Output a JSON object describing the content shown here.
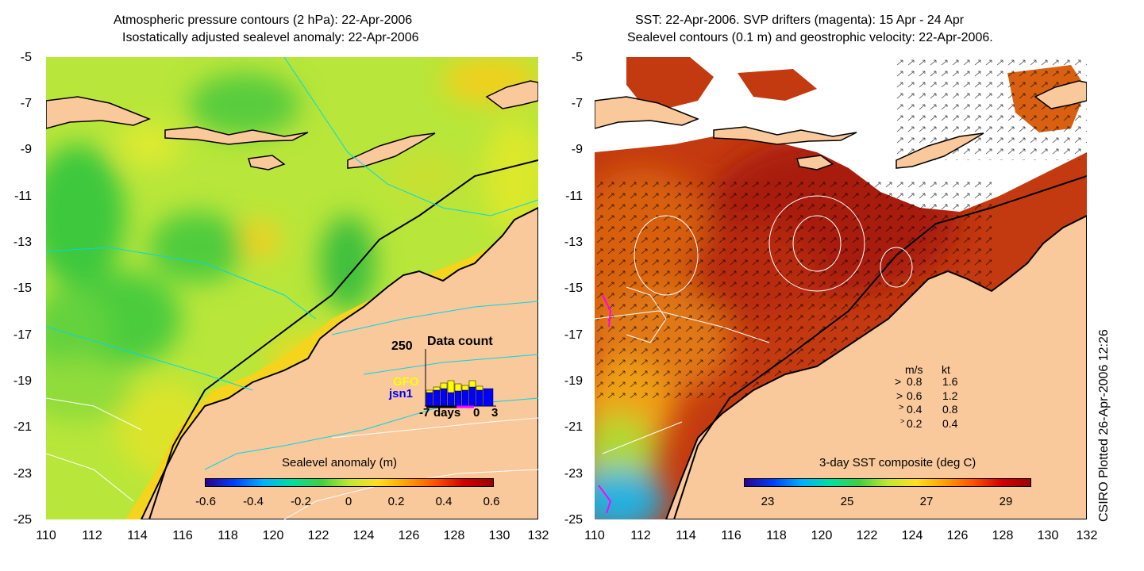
{
  "left_panel": {
    "title_line1": "Atmospheric pressure contours (2 hPa): 22-Apr-2006",
    "title_line2": "Isostatically adjusted sealevel anomaly: 22-Apr-2006",
    "colorbar_label": "Sealevel anomaly (m)",
    "colorbar_ticks": [
      "-0.6",
      "-0.4",
      "-0.2",
      "0",
      "0.2",
      "0.4",
      "0.6"
    ],
    "colorbar_range": [
      -0.6,
      0.6
    ],
    "inset": {
      "title": "Data count",
      "ymax_label": "250",
      "series_labels": [
        "GFO",
        "jsn1"
      ],
      "series_colors": [
        "#ffff00",
        "#0000ff"
      ],
      "xlabels": [
        "-7",
        "days",
        "0",
        "3"
      ]
    }
  },
  "right_panel": {
    "title_line1": "SST: 22-Apr-2006. SVP drifters (magenta): 15 Apr - 24 Apr",
    "title_line2": "Sealevel contours (0.1 m) and geostrophic velocity: 22-Apr-2006.",
    "colorbar_label": "3-day SST composite (deg C)",
    "colorbar_ticks": [
      "23",
      "25",
      "27",
      "29"
    ],
    "colorbar_range": [
      22.6,
      29.8
    ],
    "velocity_legend": {
      "header_ms": "m/s",
      "header_kt": "kt",
      "rows": [
        {
          "ms": "0.8",
          "kt": "1.6"
        },
        {
          "ms": "0.6",
          "kt": "1.2"
        },
        {
          "ms": "0.4",
          "kt": "0.8"
        },
        {
          "ms": "0.2",
          "kt": "0.4"
        }
      ]
    }
  },
  "axes": {
    "x_ticks": [
      "110",
      "112",
      "114",
      "116",
      "118",
      "120",
      "122",
      "124",
      "126",
      "128",
      "130",
      "132"
    ],
    "y_ticks": [
      "-5",
      "-7",
      "-9",
      "-11",
      "-13",
      "-15",
      "-17",
      "-19",
      "-21",
      "-23",
      "-25"
    ],
    "lon_range": [
      110,
      132
    ],
    "lat_range": [
      -25,
      -5
    ]
  },
  "credit": "CSIRO Plotted 26-Apr-2006 12:26",
  "colors": {
    "land": "#f9c89b",
    "coast": "#000000",
    "pressure_contour": "#00d8e8",
    "sealevel_contour": "#ffffff",
    "drifter": "#ff00ff"
  }
}
